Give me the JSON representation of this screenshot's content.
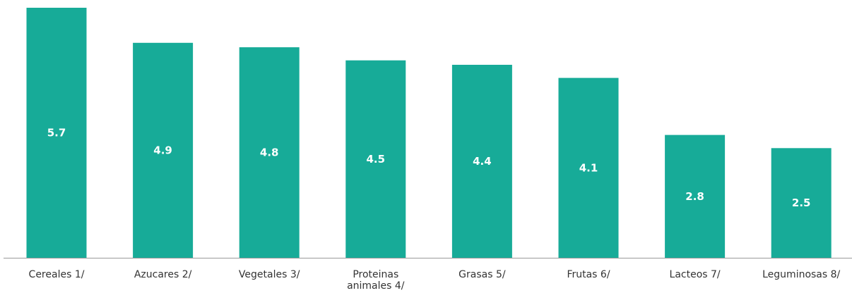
{
  "chart_data": {
    "type": "bar",
    "categories": [
      [
        "Cereales 1/"
      ],
      [
        "Azucares 2/"
      ],
      [
        "Vegetales 3/"
      ],
      [
        "Proteinas",
        "animales 4/"
      ],
      [
        "Grasas 5/"
      ],
      [
        "Frutas 6/"
      ],
      [
        "Lacteos 7/"
      ],
      [
        "Leguminosas 8/"
      ]
    ],
    "values": [
      5.7,
      4.9,
      4.8,
      4.5,
      4.4,
      4.1,
      2.8,
      2.5
    ],
    "title": "",
    "xlabel": "",
    "ylabel": "",
    "ylim": [
      0,
      5.7
    ],
    "grid": false,
    "legend": "none",
    "colors": {
      "bar": "#17ab98",
      "axis": "#9a9a9a",
      "label": "#ffffff",
      "tick": "#333333"
    }
  }
}
